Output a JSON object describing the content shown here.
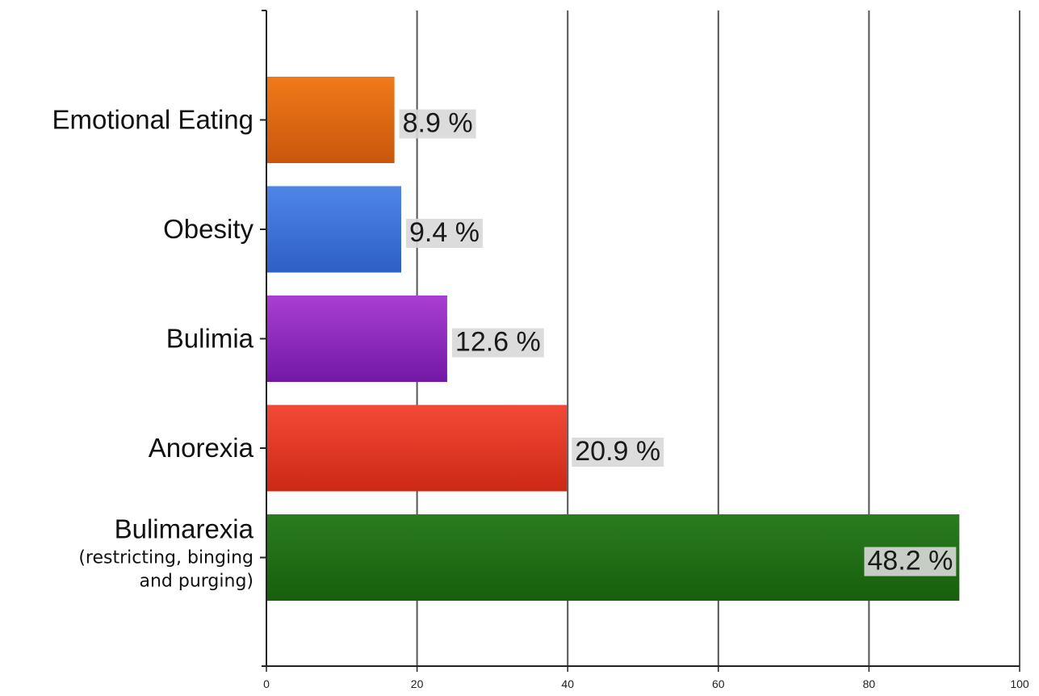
{
  "chart_data": {
    "type": "bar",
    "orientation": "horizontal",
    "title": "",
    "xlabel": "",
    "ylabel": "",
    "xlim": [
      0,
      100
    ],
    "x_ticks": [
      "0",
      "20",
      "40",
      "60",
      "80",
      "100"
    ],
    "grid": true,
    "legend": "none",
    "categories": [
      {
        "lines": [
          "Emotional Eating"
        ],
        "bar_value": 17.0,
        "data_label": "8.9 %",
        "color_top": "#f07a1a",
        "color_bottom": "#c9560c"
      },
      {
        "lines": [
          "Obesity"
        ],
        "bar_value": 17.9,
        "data_label": "9.4 %",
        "color_top": "#4f86e6",
        "color_bottom": "#2e5fc4"
      },
      {
        "lines": [
          "Bulimia"
        ],
        "bar_value": 24.0,
        "data_label": "12.6 %",
        "color_top": "#a93fd2",
        "color_bottom": "#7318a6"
      },
      {
        "lines": [
          "Anorexia"
        ],
        "bar_value": 39.9,
        "data_label": "20.9 %",
        "color_top": "#f24a37",
        "color_bottom": "#cc2816"
      },
      {
        "lines": [
          "Bulimarexia",
          "(restricting, binging",
          "and purging)"
        ],
        "bar_value": 92.0,
        "data_label": "48.2 %",
        "color_top": "#2a7c1e",
        "color_bottom": "#175f0d"
      }
    ]
  }
}
